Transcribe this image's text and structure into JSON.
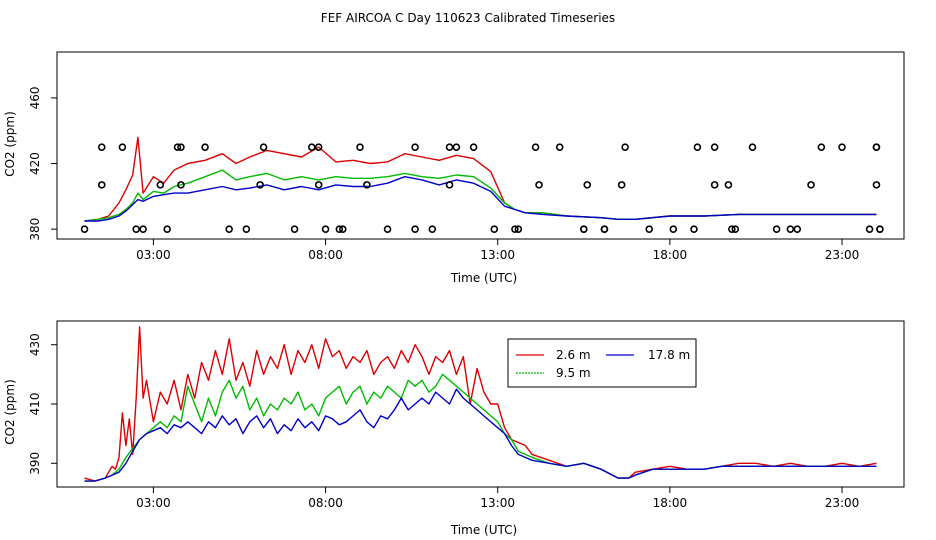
{
  "title": "FEF AIRCOA C  Day 110623  Calibrated Timeseries",
  "colors": {
    "s1": "#dd0000",
    "s2": "#00bb00",
    "s3": "#0000cc"
  },
  "chart_data": [
    {
      "type": "line",
      "xlabel": "Time (UTC)",
      "ylabel": "CO2 (ppm)",
      "xlim": [
        0.2,
        24.8
      ],
      "ylim": [
        374,
        488
      ],
      "x_tick_values": [
        3,
        8,
        13,
        18,
        23
      ],
      "x_ticks": [
        "03:00",
        "08:00",
        "13:00",
        "18:00",
        "23:00"
      ],
      "y_tick_values": [
        380,
        420,
        460
      ],
      "y_ticks": [
        "380",
        "420",
        "460"
      ],
      "series": [
        {
          "name": "2.6 m",
          "x": [
            1.0,
            1.4,
            1.7,
            2.0,
            2.2,
            2.4,
            2.55,
            2.7,
            3.0,
            3.3,
            3.6,
            4.0,
            4.5,
            5.0,
            5.4,
            5.8,
            6.3,
            6.8,
            7.3,
            7.8,
            8.3,
            8.8,
            9.3,
            9.8,
            10.3,
            10.8,
            11.3,
            11.8,
            12.3,
            12.8,
            13.2,
            13.5,
            13.8,
            14.3,
            15.0,
            16.0,
            16.5,
            17.0,
            18.0,
            19.0,
            20.0,
            21.0,
            22.0,
            23.0,
            24.0
          ],
          "y": [
            385,
            386,
            388,
            396,
            404,
            413,
            436,
            402,
            412,
            408,
            416,
            420,
            422,
            426,
            420,
            424,
            428,
            426,
            424,
            430,
            421,
            422,
            420,
            421,
            426,
            424,
            422,
            425,
            423,
            415,
            396,
            392,
            390,
            390,
            388,
            387,
            386,
            386,
            388,
            388,
            389,
            389,
            389,
            389,
            389
          ]
        },
        {
          "name": "9.5 m",
          "x": [
            1.0,
            1.4,
            1.7,
            2.0,
            2.2,
            2.4,
            2.55,
            2.7,
            3.0,
            3.3,
            3.6,
            4.0,
            4.5,
            5.0,
            5.4,
            5.8,
            6.3,
            6.8,
            7.3,
            7.8,
            8.3,
            8.8,
            9.3,
            9.8,
            10.3,
            10.8,
            11.3,
            11.8,
            12.3,
            12.8,
            13.2,
            13.5,
            13.8,
            14.3,
            15.0,
            16.0,
            16.5,
            17.0,
            18.0,
            19.0,
            20.0,
            21.0,
            22.0,
            23.0,
            24.0
          ],
          "y": [
            385,
            386,
            387,
            389,
            392,
            396,
            402,
            398,
            403,
            402,
            406,
            408,
            412,
            416,
            410,
            412,
            414,
            410,
            412,
            410,
            412,
            411,
            411,
            412,
            414,
            412,
            411,
            413,
            412,
            405,
            396,
            392,
            390,
            390,
            388,
            387,
            386,
            386,
            388,
            388,
            389,
            389,
            389,
            389,
            389
          ]
        },
        {
          "name": "17.8 m",
          "x": [
            1.0,
            1.4,
            1.7,
            2.0,
            2.2,
            2.4,
            2.55,
            2.7,
            3.0,
            3.3,
            3.6,
            4.0,
            4.5,
            5.0,
            5.4,
            5.8,
            6.3,
            6.8,
            7.3,
            7.8,
            8.3,
            8.8,
            9.3,
            9.8,
            10.3,
            10.8,
            11.3,
            11.8,
            12.3,
            12.8,
            13.2,
            13.5,
            13.8,
            14.3,
            15.0,
            16.0,
            16.5,
            17.0,
            18.0,
            19.0,
            20.0,
            21.0,
            22.0,
            23.0,
            24.0
          ],
          "y": [
            385,
            385,
            386,
            388,
            391,
            395,
            398,
            397,
            400,
            401,
            402,
            402,
            404,
            406,
            404,
            405,
            407,
            404,
            406,
            404,
            407,
            406,
            406,
            408,
            412,
            410,
            407,
            410,
            408,
            403,
            394,
            392,
            390,
            389,
            388,
            387,
            386,
            386,
            388,
            388,
            389,
            389,
            389,
            389,
            389
          ]
        },
        {
          "name": "circles",
          "type": "scatter",
          "x": [
            1.5,
            2.1,
            2.7,
            3.4,
            3.7,
            4.5,
            5.2,
            6.2,
            7.1,
            7.6,
            8.0,
            8.4,
            9.0,
            9.8,
            10.6,
            11.1,
            11.8,
            12.3,
            12.9,
            13.5,
            14.1,
            14.8,
            15.5,
            16.1,
            16.7,
            17.4,
            18.1,
            18.8,
            19.3,
            19.9,
            20.4,
            21.1,
            21.7,
            22.4,
            23.0,
            23.8,
            24.0,
            24.1,
            24.0,
            1.0,
            2.5,
            3.8,
            5.7,
            7.8,
            8.5,
            10.6,
            11.6,
            13.6,
            15.5,
            16.1,
            18.7,
            19.8,
            21.5,
            24.1,
            1.5,
            3.2,
            3.8,
            6.1,
            7.8,
            9.2,
            11.6,
            14.2,
            15.6,
            16.6,
            19.3,
            19.7,
            22.1,
            24.0
          ],
          "y": [
            430,
            430,
            380,
            380,
            430,
            430,
            380,
            430,
            380,
            430,
            380,
            380,
            430,
            380,
            430,
            380,
            430,
            430,
            380,
            380,
            430,
            430,
            380,
            380,
            430,
            380,
            380,
            430,
            430,
            380,
            430,
            380,
            380,
            430,
            430,
            380,
            430,
            380,
            430,
            380,
            380,
            430,
            380,
            430,
            380,
            380,
            430,
            380,
            380,
            380,
            380,
            380,
            380,
            380,
            407,
            407,
            407,
            407,
            407,
            407,
            407,
            407,
            407,
            407,
            407,
            407,
            407,
            407
          ]
        }
      ]
    },
    {
      "type": "line",
      "xlabel": "Time (UTC)",
      "ylabel": "CO2 (ppm)",
      "xlim": [
        0.2,
        24.8
      ],
      "ylim": [
        382,
        438
      ],
      "x_tick_values": [
        3,
        8,
        13,
        18,
        23
      ],
      "x_ticks": [
        "03:00",
        "08:00",
        "13:00",
        "18:00",
        "23:00"
      ],
      "y_tick_values": [
        390,
        410,
        430
      ],
      "y_ticks": [
        "390",
        "410",
        "430"
      ],
      "legend": {
        "position": "top-right",
        "entries": [
          "2.6 m",
          "9.5 m",
          "17.8 m"
        ]
      },
      "series": [
        {
          "name": "2.6 m",
          "x": [
            1.0,
            1.3,
            1.6,
            1.8,
            1.9,
            2.0,
            2.1,
            2.2,
            2.3,
            2.4,
            2.5,
            2.6,
            2.7,
            2.8,
            3.0,
            3.2,
            3.4,
            3.6,
            3.8,
            4.0,
            4.2,
            4.4,
            4.6,
            4.8,
            5.0,
            5.2,
            5.4,
            5.6,
            5.8,
            6.0,
            6.2,
            6.4,
            6.6,
            6.8,
            7.0,
            7.2,
            7.4,
            7.6,
            7.8,
            8.0,
            8.2,
            8.4,
            8.6,
            8.8,
            9.0,
            9.2,
            9.4,
            9.6,
            9.8,
            10.0,
            10.2,
            10.4,
            10.6,
            10.8,
            11.0,
            11.2,
            11.4,
            11.6,
            11.8,
            12.0,
            12.2,
            12.4,
            12.6,
            12.8,
            13.0,
            13.2,
            13.4,
            13.6,
            13.8,
            14.0,
            14.5,
            15.0,
            15.5,
            16.0,
            16.5,
            16.8,
            17.0,
            17.5,
            18.0,
            18.5,
            19.0,
            19.5,
            20.0,
            20.5,
            21.0,
            21.5,
            22.0,
            22.5,
            23.0,
            23.5,
            24.0
          ],
          "y": [
            385,
            384,
            385,
            389,
            388,
            392,
            407,
            396,
            405,
            393,
            412,
            436,
            412,
            418,
            404,
            414,
            410,
            418,
            408,
            420,
            412,
            424,
            418,
            428,
            420,
            432,
            418,
            424,
            416,
            428,
            420,
            426,
            422,
            430,
            420,
            428,
            424,
            430,
            422,
            432,
            426,
            428,
            422,
            426,
            424,
            428,
            420,
            424,
            426,
            422,
            428,
            424,
            430,
            426,
            420,
            426,
            424,
            428,
            420,
            426,
            410,
            422,
            414,
            410,
            410,
            402,
            398,
            397,
            396,
            393,
            391,
            389,
            390,
            388,
            385,
            385,
            387,
            388,
            389,
            388,
            388,
            389,
            390,
            390,
            389,
            390,
            389,
            389,
            390,
            389,
            390
          ]
        },
        {
          "name": "9.5 m",
          "x": [
            1.0,
            1.3,
            1.6,
            1.8,
            2.0,
            2.2,
            2.4,
            2.6,
            2.8,
            3.0,
            3.2,
            3.4,
            3.6,
            3.8,
            4.0,
            4.2,
            4.4,
            4.6,
            4.8,
            5.0,
            5.2,
            5.4,
            5.6,
            5.8,
            6.0,
            6.2,
            6.4,
            6.6,
            6.8,
            7.0,
            7.2,
            7.4,
            7.6,
            7.8,
            8.0,
            8.2,
            8.4,
            8.6,
            8.8,
            9.0,
            9.2,
            9.4,
            9.6,
            9.8,
            10.0,
            10.2,
            10.4,
            10.6,
            10.8,
            11.0,
            11.2,
            11.4,
            11.6,
            11.8,
            12.0,
            12.2,
            12.4,
            12.6,
            12.8,
            13.0,
            13.2,
            13.4,
            13.6,
            13.8,
            14.0,
            14.5,
            15.0,
            15.5,
            16.0,
            16.5,
            16.8,
            17.0,
            17.5,
            18.0,
            18.5,
            19.0,
            19.5,
            20.0,
            20.5,
            21.0,
            21.5,
            22.0,
            22.5,
            23.0,
            23.5,
            24.0
          ],
          "y": [
            384,
            384,
            385,
            386,
            388,
            392,
            395,
            398,
            400,
            402,
            404,
            402,
            406,
            404,
            416,
            410,
            404,
            412,
            406,
            414,
            418,
            412,
            416,
            408,
            412,
            406,
            410,
            408,
            412,
            410,
            414,
            408,
            410,
            406,
            412,
            414,
            416,
            410,
            414,
            416,
            410,
            414,
            412,
            416,
            414,
            412,
            418,
            416,
            418,
            414,
            416,
            420,
            418,
            416,
            414,
            412,
            410,
            408,
            406,
            404,
            400,
            398,
            394,
            393,
            392,
            390,
            389,
            390,
            388,
            385,
            385,
            386,
            388,
            388,
            388,
            388,
            389,
            389,
            389,
            389,
            389,
            389,
            389,
            389,
            389,
            389
          ]
        },
        {
          "name": "17.8 m",
          "x": [
            1.0,
            1.3,
            1.6,
            1.8,
            2.0,
            2.2,
            2.4,
            2.6,
            2.8,
            3.0,
            3.2,
            3.4,
            3.6,
            3.8,
            4.0,
            4.2,
            4.4,
            4.6,
            4.8,
            5.0,
            5.2,
            5.4,
            5.6,
            5.8,
            6.0,
            6.2,
            6.4,
            6.6,
            6.8,
            7.0,
            7.2,
            7.4,
            7.6,
            7.8,
            8.0,
            8.2,
            8.4,
            8.6,
            8.8,
            9.0,
            9.2,
            9.4,
            9.6,
            9.8,
            10.0,
            10.2,
            10.4,
            10.6,
            10.8,
            11.0,
            11.2,
            11.4,
            11.6,
            11.8,
            12.0,
            12.2,
            12.4,
            12.6,
            12.8,
            13.0,
            13.2,
            13.4,
            13.6,
            13.8,
            14.0,
            14.5,
            15.0,
            15.5,
            16.0,
            16.5,
            16.8,
            17.0,
            17.5,
            18.0,
            18.5,
            19.0,
            19.5,
            20.0,
            20.5,
            21.0,
            21.5,
            22.0,
            22.5,
            23.0,
            23.5,
            24.0
          ],
          "y": [
            384,
            384,
            385,
            386,
            387,
            390,
            394,
            398,
            400,
            401,
            402,
            400,
            403,
            402,
            404,
            402,
            400,
            404,
            402,
            406,
            403,
            405,
            400,
            404,
            406,
            402,
            405,
            400,
            403,
            401,
            405,
            402,
            404,
            401,
            406,
            405,
            403,
            404,
            406,
            408,
            404,
            402,
            406,
            405,
            408,
            412,
            408,
            410,
            412,
            410,
            414,
            412,
            410,
            415,
            412,
            410,
            408,
            406,
            404,
            402,
            400,
            396,
            393,
            392,
            391,
            390,
            389,
            390,
            388,
            385,
            385,
            386,
            388,
            388,
            388,
            388,
            389,
            389,
            389,
            389,
            389,
            389,
            389,
            389,
            389,
            389
          ]
        }
      ]
    }
  ]
}
